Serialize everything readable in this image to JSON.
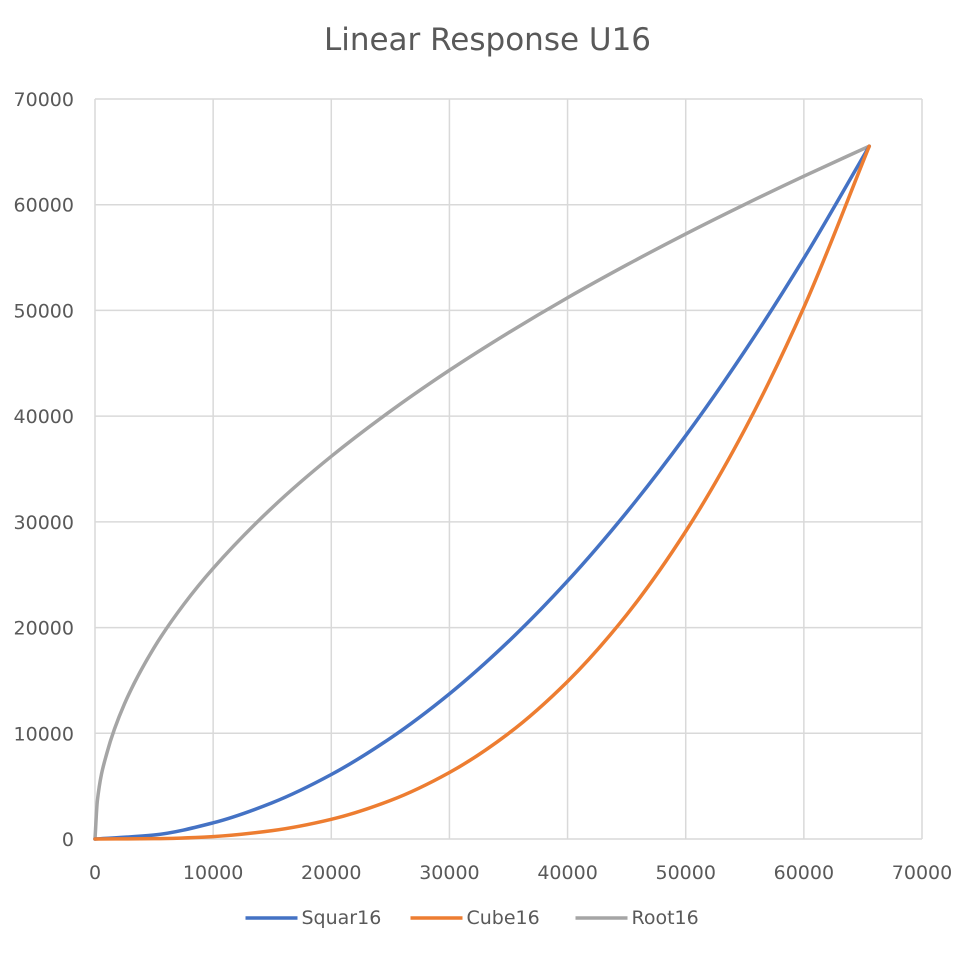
{
  "chart_data": {
    "type": "line",
    "title": "Linear Response U16",
    "xlabel": "",
    "ylabel": "",
    "xlim": [
      0,
      70000
    ],
    "ylim": [
      0,
      70000
    ],
    "x_ticks": [
      0,
      10000,
      20000,
      30000,
      40000,
      50000,
      60000,
      70000
    ],
    "y_ticks": [
      0,
      10000,
      20000,
      30000,
      40000,
      50000,
      60000,
      70000
    ],
    "x_tick_labels": [
      "0",
      "10000",
      "20000",
      "30000",
      "40000",
      "50000",
      "60000",
      "70000"
    ],
    "y_tick_labels": [
      "0",
      "10000",
      "20000",
      "30000",
      "40000",
      "50000",
      "60000",
      "70000"
    ],
    "grid": true,
    "legend_position": "bottom",
    "colors": {
      "gridline": "#d9d9d9",
      "tick_text": "#595959"
    },
    "series": [
      {
        "name": "Squar16",
        "color": "#4472c4",
        "x": [
          0,
          5000,
          10000,
          15000,
          20000,
          25000,
          30000,
          35000,
          40000,
          45000,
          50000,
          55000,
          60000,
          65535
        ],
        "y": [
          0,
          380,
          1530,
          3430,
          6100,
          9540,
          13730,
          18690,
          24410,
          30900,
          38150,
          46160,
          54930,
          65535
        ]
      },
      {
        "name": "Cube16",
        "color": "#ed7d31",
        "x": [
          0,
          5000,
          10000,
          15000,
          20000,
          25000,
          30000,
          35000,
          40000,
          45000,
          50000,
          55000,
          60000,
          65535
        ],
        "y": [
          0,
          30,
          230,
          790,
          1860,
          3640,
          6290,
          9980,
          14900,
          21210,
          29100,
          38740,
          50290,
          65535
        ]
      },
      {
        "name": "Root16",
        "color": "#a5a5a5",
        "x": [
          0,
          200,
          1000,
          2500,
          5000,
          7500,
          10000,
          15000,
          20000,
          25000,
          30000,
          35000,
          40000,
          45000,
          50000,
          55000,
          60000,
          65535
        ],
        "y": [
          0,
          3620,
          8100,
          12800,
          18100,
          22170,
          25600,
          31350,
          36200,
          40470,
          44340,
          47890,
          51200,
          54300,
          57240,
          60030,
          62700,
          65535
        ]
      }
    ]
  }
}
